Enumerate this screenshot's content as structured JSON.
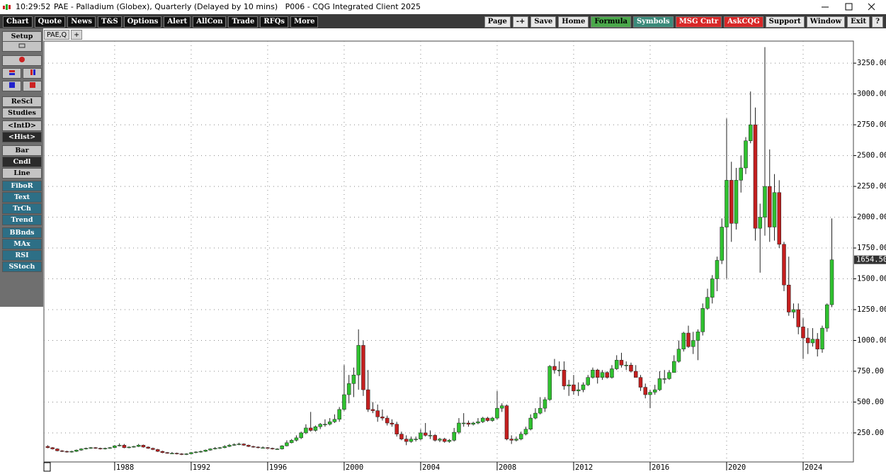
{
  "window": {
    "time": "10:29:52",
    "title": "PAE - Palladium (Globex), Quarterly (Delayed by 10 mins)   P006 - CQG Integrated Client 2025"
  },
  "toolbar": {
    "left": [
      "Chart",
      "Quote",
      "News",
      "T&S",
      "Options",
      "Alert",
      "AllCon",
      "Trade",
      "RFQs",
      "More"
    ],
    "right": [
      "Page",
      "-+",
      "Save",
      "Home",
      "Formula",
      "Symbols",
      "MSG Cntr",
      "AskCQG",
      "Support",
      "Window",
      "Exit",
      "?"
    ]
  },
  "sidebar": [
    "Setup",
    "ReScl",
    "Studies",
    "<IntD>",
    "<Hist>",
    "Bar",
    "Cndl",
    "Line",
    "FiboR",
    "Text",
    "TrCh",
    "Trend",
    "BBnds",
    "MAx",
    "RSI",
    "SStoch"
  ],
  "tabs": [
    "PAE,Q",
    "+"
  ],
  "chart_data": {
    "type": "candlestick",
    "x": [
      1984.5,
      1984.75,
      1985,
      1985.25,
      1985.5,
      1985.75,
      1986,
      1986.25,
      1986.5,
      1986.75,
      1987,
      1987.25,
      1987.5,
      1987.75,
      1988,
      1988.25,
      1988.5,
      1988.75,
      1989,
      1989.25,
      1989.5,
      1989.75,
      1990,
      1990.25,
      1990.5,
      1990.75,
      1991,
      1991.25,
      1991.5,
      1991.75,
      1992,
      1992.25,
      1992.5,
      1992.75,
      1993,
      1993.25,
      1993.5,
      1993.75,
      1994,
      1994.25,
      1994.5,
      1994.75,
      1995,
      1995.25,
      1995.5,
      1995.75,
      1996,
      1996.25,
      1996.5,
      1996.75,
      1997,
      1997.25,
      1997.5,
      1997.75,
      1998,
      1998.25,
      1998.5,
      1998.75,
      1999,
      1999.25,
      1999.5,
      1999.75,
      2000,
      2000.25,
      2000.5,
      2000.75,
      2001,
      2001.25,
      2001.5,
      2001.75,
      2002,
      2002.25,
      2002.5,
      2002.75,
      2003,
      2003.25,
      2003.5,
      2003.75,
      2004,
      2004.25,
      2004.5,
      2004.75,
      2005,
      2005.25,
      2005.5,
      2005.75,
      2006,
      2006.25,
      2006.5,
      2006.75,
      2007,
      2007.25,
      2007.5,
      2007.75,
      2008,
      2008.25,
      2008.5,
      2008.75,
      2009,
      2009.25,
      2009.5,
      2009.75,
      2010,
      2010.25,
      2010.5,
      2010.75,
      2011,
      2011.25,
      2011.5,
      2011.75,
      2012,
      2012.25,
      2012.5,
      2012.75,
      2013,
      2013.25,
      2013.5,
      2013.75,
      2014,
      2014.25,
      2014.5,
      2014.75,
      2015,
      2015.25,
      2015.5,
      2015.75,
      2016,
      2016.25,
      2016.5,
      2016.75,
      2017,
      2017.25,
      2017.5,
      2017.75,
      2018,
      2018.25,
      2018.5,
      2018.75,
      2019,
      2019.25,
      2019.5,
      2019.75,
      2020,
      2020.25,
      2020.5,
      2020.75,
      2021,
      2021.25,
      2021.5,
      2021.75,
      2022,
      2022.25,
      2022.5,
      2022.75,
      2023,
      2023.25,
      2023.5,
      2023.75,
      2024,
      2024.25,
      2024.5,
      2024.75,
      2025,
      2025.25,
      2025.5
    ],
    "open": [
      140,
      130,
      120,
      105,
      100,
      95,
      100,
      110,
      120,
      125,
      130,
      125,
      120,
      125,
      130,
      145,
      150,
      130,
      135,
      140,
      150,
      135,
      125,
      115,
      100,
      90,
      85,
      85,
      80,
      75,
      80,
      90,
      95,
      100,
      110,
      120,
      125,
      130,
      140,
      150,
      155,
      160,
      150,
      140,
      135,
      130,
      130,
      125,
      120,
      120,
      145,
      170,
      190,
      210,
      250,
      290,
      270,
      300,
      320,
      320,
      340,
      360,
      440,
      560,
      650,
      720,
      960,
      600,
      440,
      430,
      380,
      370,
      330,
      320,
      240,
      200,
      180,
      200,
      200,
      250,
      230,
      230,
      190,
      200,
      180,
      190,
      255,
      330,
      330,
      320,
      330,
      340,
      370,
      350,
      370,
      450,
      470,
      200,
      190,
      200,
      240,
      280,
      370,
      410,
      450,
      520,
      790,
      760,
      760,
      630,
      640,
      590,
      600,
      640,
      700,
      760,
      700,
      740,
      700,
      770,
      840,
      800,
      800,
      750,
      700,
      620,
      560,
      580,
      600,
      690,
      690,
      740,
      830,
      930,
      1060,
      950,
      1000,
      1070,
      1260,
      1350,
      1500,
      1650,
      1920,
      2300,
      1950,
      2300,
      2400,
      2620,
      2750,
      1910,
      2000,
      2250,
      1920,
      2200,
      1780,
      1450,
      1230,
      1250,
      1110,
      1020,
      980,
      1010,
      930,
      1100,
      1290
    ],
    "high": [
      150,
      135,
      125,
      110,
      105,
      105,
      115,
      125,
      130,
      135,
      135,
      130,
      130,
      135,
      150,
      165,
      160,
      140,
      145,
      160,
      155,
      140,
      130,
      120,
      105,
      95,
      95,
      90,
      85,
      85,
      95,
      100,
      105,
      115,
      125,
      135,
      135,
      150,
      160,
      165,
      170,
      165,
      155,
      145,
      140,
      140,
      135,
      130,
      125,
      150,
      190,
      200,
      230,
      260,
      320,
      420,
      310,
      330,
      360,
      370,
      400,
      460,
      800,
      720,
      780,
      1090,
      1000,
      760,
      500,
      480,
      440,
      390,
      360,
      340,
      260,
      230,
      220,
      220,
      280,
      330,
      270,
      240,
      210,
      210,
      200,
      290,
      370,
      410,
      350,
      340,
      370,
      380,
      380,
      380,
      590,
      490,
      480,
      230,
      220,
      260,
      300,
      400,
      450,
      540,
      540,
      800,
      850,
      830,
      830,
      680,
      720,
      660,
      660,
      720,
      780,
      770,
      760,
      750,
      800,
      880,
      900,
      830,
      820,
      800,
      720,
      650,
      600,
      640,
      750,
      760,
      760,
      880,
      1000,
      1070,
      1120,
      1070,
      1090,
      1300,
      1420,
      1530,
      1680,
      1990,
      2800,
      2450,
      2400,
      2500,
      2650,
      3020,
      2890,
      2110,
      3380,
      2550,
      2350,
      2300,
      1800,
      1680,
      1300,
      1300,
      1180,
      1100,
      1100,
      1060,
      1120,
      1300,
      1990
    ],
    "low": [
      125,
      115,
      100,
      95,
      90,
      90,
      95,
      105,
      115,
      120,
      120,
      115,
      115,
      120,
      125,
      140,
      125,
      125,
      130,
      135,
      130,
      120,
      110,
      95,
      85,
      80,
      80,
      75,
      70,
      70,
      75,
      85,
      90,
      95,
      105,
      115,
      120,
      125,
      135,
      145,
      150,
      145,
      135,
      130,
      125,
      125,
      120,
      115,
      115,
      115,
      140,
      165,
      180,
      200,
      240,
      260,
      260,
      280,
      300,
      310,
      330,
      340,
      430,
      490,
      540,
      600,
      550,
      420,
      410,
      340,
      350,
      310,
      300,
      220,
      190,
      150,
      170,
      180,
      190,
      220,
      200,
      180,
      175,
      170,
      170,
      180,
      240,
      300,
      300,
      310,
      320,
      330,
      340,
      340,
      360,
      420,
      190,
      160,
      180,
      190,
      230,
      270,
      360,
      400,
      420,
      510,
      730,
      710,
      600,
      550,
      560,
      550,
      580,
      630,
      690,
      650,
      680,
      690,
      690,
      760,
      780,
      760,
      740,
      700,
      590,
      530,
      450,
      560,
      590,
      650,
      680,
      740,
      820,
      910,
      940,
      890,
      840,
      1040,
      1250,
      1300,
      1400,
      1620,
      1500,
      1800,
      1900,
      2200,
      2350,
      2600,
      1810,
      1550,
      1850,
      1800,
      1810,
      1750,
      1400,
      1200,
      1180,
      1050,
      850,
      890,
      950,
      870,
      900,
      1070,
      1270
    ],
    "close": [
      130,
      120,
      105,
      100,
      95,
      100,
      110,
      120,
      125,
      130,
      125,
      120,
      125,
      130,
      145,
      150,
      130,
      135,
      140,
      150,
      135,
      125,
      115,
      100,
      90,
      85,
      85,
      80,
      75,
      80,
      90,
      95,
      100,
      110,
      120,
      125,
      130,
      140,
      150,
      155,
      160,
      150,
      140,
      135,
      130,
      130,
      125,
      120,
      120,
      145,
      170,
      190,
      210,
      250,
      290,
      270,
      300,
      320,
      320,
      340,
      360,
      440,
      560,
      650,
      720,
      960,
      600,
      440,
      430,
      380,
      370,
      330,
      320,
      240,
      200,
      180,
      200,
      200,
      250,
      230,
      230,
      190,
      200,
      180,
      190,
      255,
      330,
      330,
      320,
      330,
      340,
      370,
      350,
      370,
      450,
      470,
      200,
      190,
      200,
      240,
      280,
      370,
      410,
      450,
      520,
      790,
      760,
      760,
      630,
      640,
      590,
      600,
      640,
      700,
      760,
      700,
      740,
      700,
      770,
      840,
      800,
      800,
      750,
      700,
      620,
      560,
      580,
      600,
      690,
      690,
      740,
      830,
      930,
      1060,
      950,
      1000,
      1070,
      1260,
      1350,
      1500,
      1650,
      1920,
      2300,
      1950,
      2300,
      2400,
      2620,
      2750,
      1910,
      2000,
      2250,
      1920,
      2200,
      1780,
      1450,
      1230,
      1250,
      1110,
      1020,
      980,
      1010,
      930,
      1100,
      1290,
      1654.5
    ],
    "up_color": "#2fc12f",
    "down_color": "#c41f1f",
    "last_price": {
      "value": 1654.5,
      "label": "1654.50"
    },
    "xlim": [
      1984.3,
      2026.63
    ],
    "xticks": [
      1988,
      1992,
      1996,
      2000,
      2004,
      2008,
      2012,
      2016,
      2020,
      2024
    ],
    "ylim": [
      14,
      3429
    ],
    "yticks": [
      {
        "value": 250,
        "label": "250.00"
      },
      {
        "value": 500,
        "label": "500.00"
      },
      {
        "value": 750,
        "label": "750.00"
      },
      {
        "value": 1000,
        "label": "1000.00"
      },
      {
        "value": 1250,
        "label": "1250.00"
      },
      {
        "value": 1500,
        "label": "1500.00"
      },
      {
        "value": 1750,
        "label": "1750.00"
      },
      {
        "value": 2000,
        "label": "2000.00"
      },
      {
        "value": 2250,
        "label": "2250.00"
      },
      {
        "value": 2500,
        "label": "2500.00"
      },
      {
        "value": 2750,
        "label": "2750.00"
      },
      {
        "value": 3000,
        "label": "3000.00"
      },
      {
        "value": 3250,
        "label": "3250.00"
      }
    ],
    "grid": true
  }
}
